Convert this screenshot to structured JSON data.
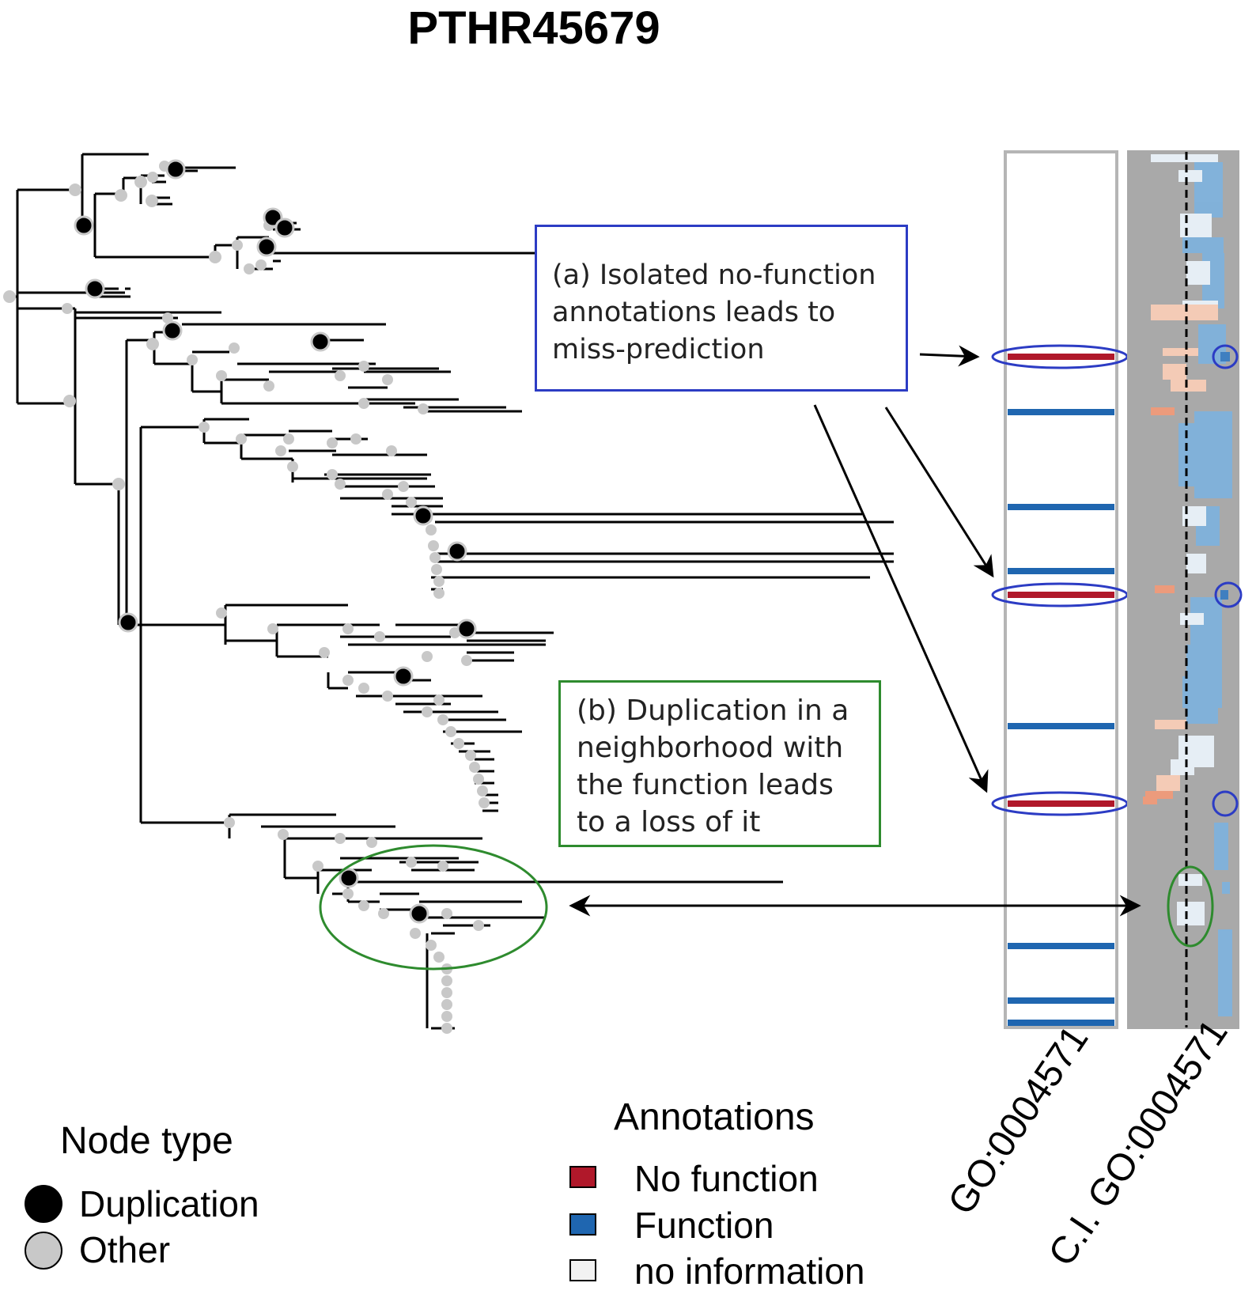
{
  "title": "PTHR45679",
  "callouts": {
    "a": {
      "lines": [
        "(a) Isolated no-function",
        "annotations leads to",
        "miss-prediction"
      ],
      "border_color": "#2c3cc4"
    },
    "b": {
      "lines": [
        "(b) Duplication in a",
        "neighborhood with",
        "the function leads",
        "to a loss of it"
      ],
      "border_color": "#2e8b2e"
    }
  },
  "columns": {
    "annotation": "GO:0004571",
    "ci": "C.I. GO:0004571"
  },
  "legend_node": {
    "title": "Node type",
    "items": [
      {
        "label": "Duplication",
        "color": "#000000"
      },
      {
        "label": "Other",
        "color": "#c8c8c8"
      }
    ]
  },
  "legend_annotations": {
    "title": "Annotations",
    "items": [
      {
        "label": "No function",
        "color": "#b0182a"
      },
      {
        "label": "Function",
        "color": "#1f66b0"
      },
      {
        "label": "no information",
        "color": "#f2f2f2"
      }
    ]
  },
  "colors": {
    "no_function": "#b0182a",
    "function": "#1f66b0",
    "ci_background": "#a9a9a9",
    "highlight_blue": "#2c3cc4",
    "highlight_green": "#2e8b2e"
  }
}
